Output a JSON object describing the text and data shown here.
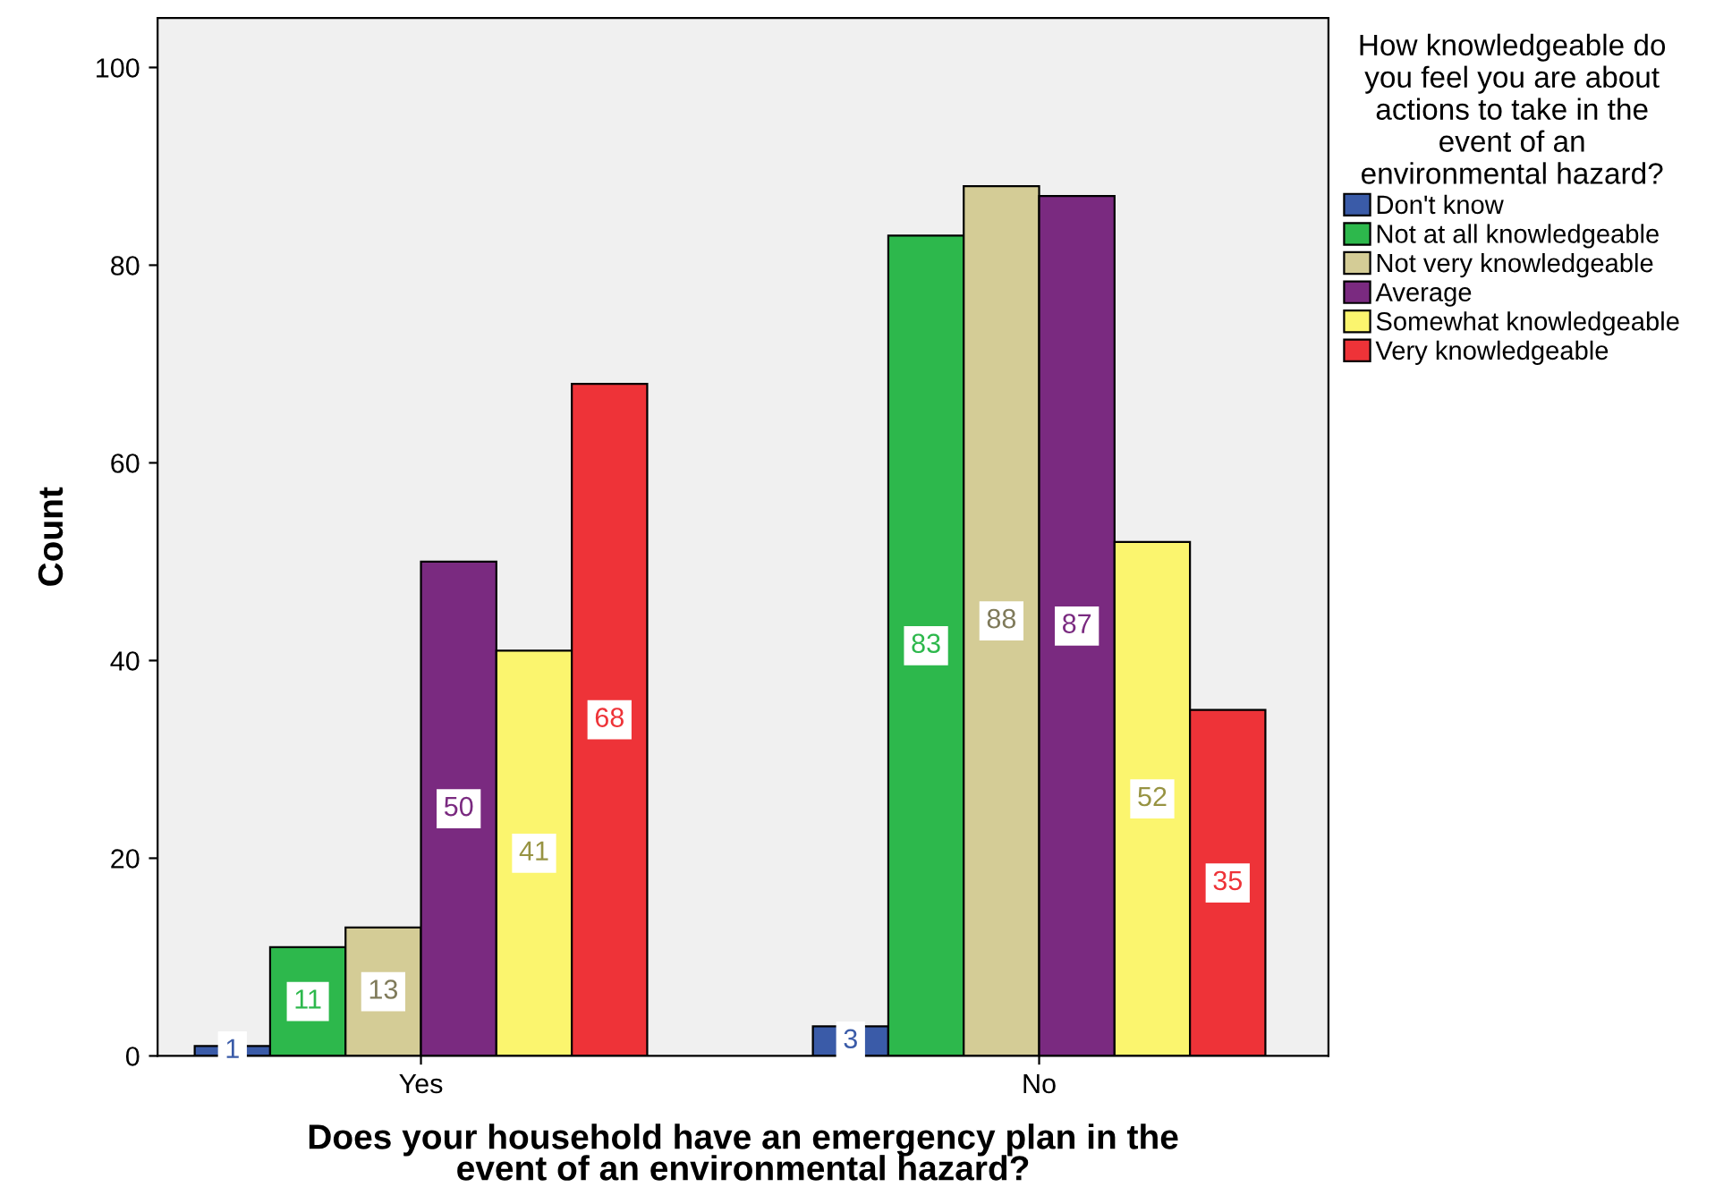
{
  "chart_data": {
    "type": "bar",
    "xlabel": "Does your household have an emergency plan in the\nevent of an environmental hazard?",
    "ylabel": "Count",
    "legend_title": "How knowledgeable do\nyou feel you are about\nactions to take in the\nevent of an\nenvironmental hazard?",
    "categories": [
      "Yes",
      "No"
    ],
    "series": [
      {
        "name": "Don't know",
        "color": "#3a5ba8",
        "values": [
          1,
          3
        ]
      },
      {
        "name": "Not at all knowledgeable",
        "color": "#2db84c",
        "values": [
          11,
          83
        ]
      },
      {
        "name": "Not very knowledgeable",
        "color": "#d4cc96",
        "values": [
          13,
          88
        ]
      },
      {
        "name": "Average",
        "color": "#7a2a80",
        "values": [
          50,
          87
        ]
      },
      {
        "name": "Somewhat knowledgeable",
        "color": "#fbf56e",
        "values": [
          41,
          52
        ]
      },
      {
        "name": "Very knowledgeable",
        "color": "#ee3338",
        "values": [
          68,
          35
        ]
      }
    ],
    "ylim": [
      0,
      105
    ],
    "yticks": [
      0,
      20,
      40,
      60,
      80,
      100
    ],
    "grid": false,
    "legend": "top right",
    "data_labels": true
  }
}
